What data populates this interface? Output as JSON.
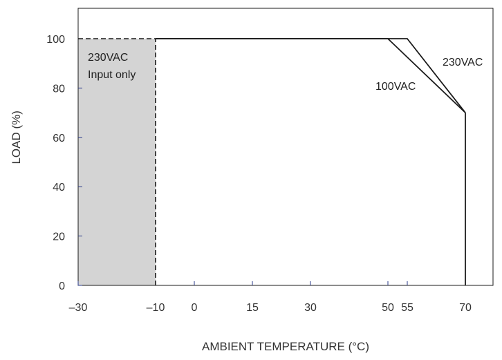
{
  "chart_data": {
    "type": "line",
    "xlabel": "AMBIENT TEMPERATURE (°C)",
    "ylabel": "LOAD (%)",
    "x_ticks": [
      {
        "value": -30,
        "label": "–30"
      },
      {
        "value": -10,
        "label": "–10"
      },
      {
        "value": 0,
        "label": "0"
      },
      {
        "value": 15,
        "label": "15"
      },
      {
        "value": 30,
        "label": "30"
      },
      {
        "value": 50,
        "label": "50"
      },
      {
        "value": 55,
        "label": "55"
      },
      {
        "value": 70,
        "label": "70"
      }
    ],
    "y_ticks": [
      0,
      20,
      40,
      60,
      80,
      100
    ],
    "xlim": [
      -30,
      80
    ],
    "ylim": [
      0,
      112
    ],
    "grid": false,
    "series": [
      {
        "name": "230VAC",
        "x": [
          -10,
          55,
          70
        ],
        "y": [
          100,
          100,
          70
        ]
      },
      {
        "name": "100VAC",
        "x": [
          -10,
          50,
          70
        ],
        "y": [
          100,
          100,
          70
        ]
      }
    ],
    "extended_region": {
      "x": [
        -30,
        -10
      ],
      "y": [
        0,
        100
      ],
      "fill": "#d4d4d4",
      "label_lines": [
        "230VAC",
        "Input only"
      ]
    },
    "vertical_drop": {
      "x": 70,
      "y": [
        0,
        70
      ]
    },
    "colors": {
      "line": "#1a1a1a",
      "axis_tick": "#2a3a8a"
    }
  }
}
